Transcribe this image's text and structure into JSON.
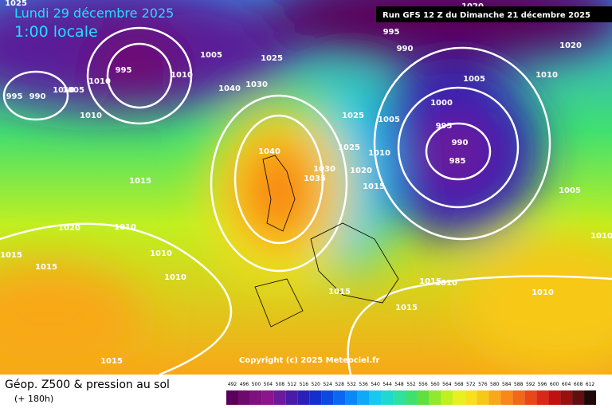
{
  "header": {
    "date": "Lundi 29 décembre 2025",
    "time": "1:00 locale",
    "run": "Run GFS 12 Z du Dimanche 21 décembre 2025"
  },
  "copyright": "Copyright (c) 2025 Meteociel.fr",
  "footer": {
    "title": "Géop. Z500 & pression au sol",
    "lead": "(+ 180h)"
  },
  "colorbar": {
    "labels": [
      492,
      496,
      500,
      504,
      508,
      512,
      516,
      520,
      524,
      528,
      532,
      536,
      540,
      544,
      548,
      552,
      556,
      560,
      564,
      568,
      572,
      576,
      580,
      584,
      588,
      592,
      596,
      600,
      604,
      608,
      612
    ],
    "colors": [
      "#5a005a",
      "#6e0a6e",
      "#800f80",
      "#8c148c",
      "#6a1a9a",
      "#4a1aa8",
      "#2a20b8",
      "#1430cc",
      "#0a4ae0",
      "#0a68f0",
      "#0a88f8",
      "#10a8f8",
      "#18c8f0",
      "#20d8d0",
      "#30e0a0",
      "#40e070",
      "#60e040",
      "#90e830",
      "#c0f020",
      "#e8f020",
      "#f8e020",
      "#f8c818",
      "#f8a818",
      "#f88818",
      "#f06818",
      "#e84818",
      "#d82818",
      "#c01010",
      "#981010",
      "#601010",
      "#200808"
    ]
  },
  "isobar_labels": [
    1025,
    995,
    990,
    1010,
    1005,
    1010,
    1010,
    995,
    1010,
    1005,
    1040,
    1030,
    1025,
    995,
    990,
    1020,
    1020,
    1010,
    1005,
    1000,
    995,
    990,
    985,
    1025,
    1005,
    1025,
    1010,
    1040,
    1030,
    1035,
    1020,
    1015,
    1015,
    1020,
    1010,
    1015,
    1015,
    1010,
    1010,
    1015,
    1015,
    1015,
    1010,
    1010,
    1005,
    1010,
    1015
  ]
}
